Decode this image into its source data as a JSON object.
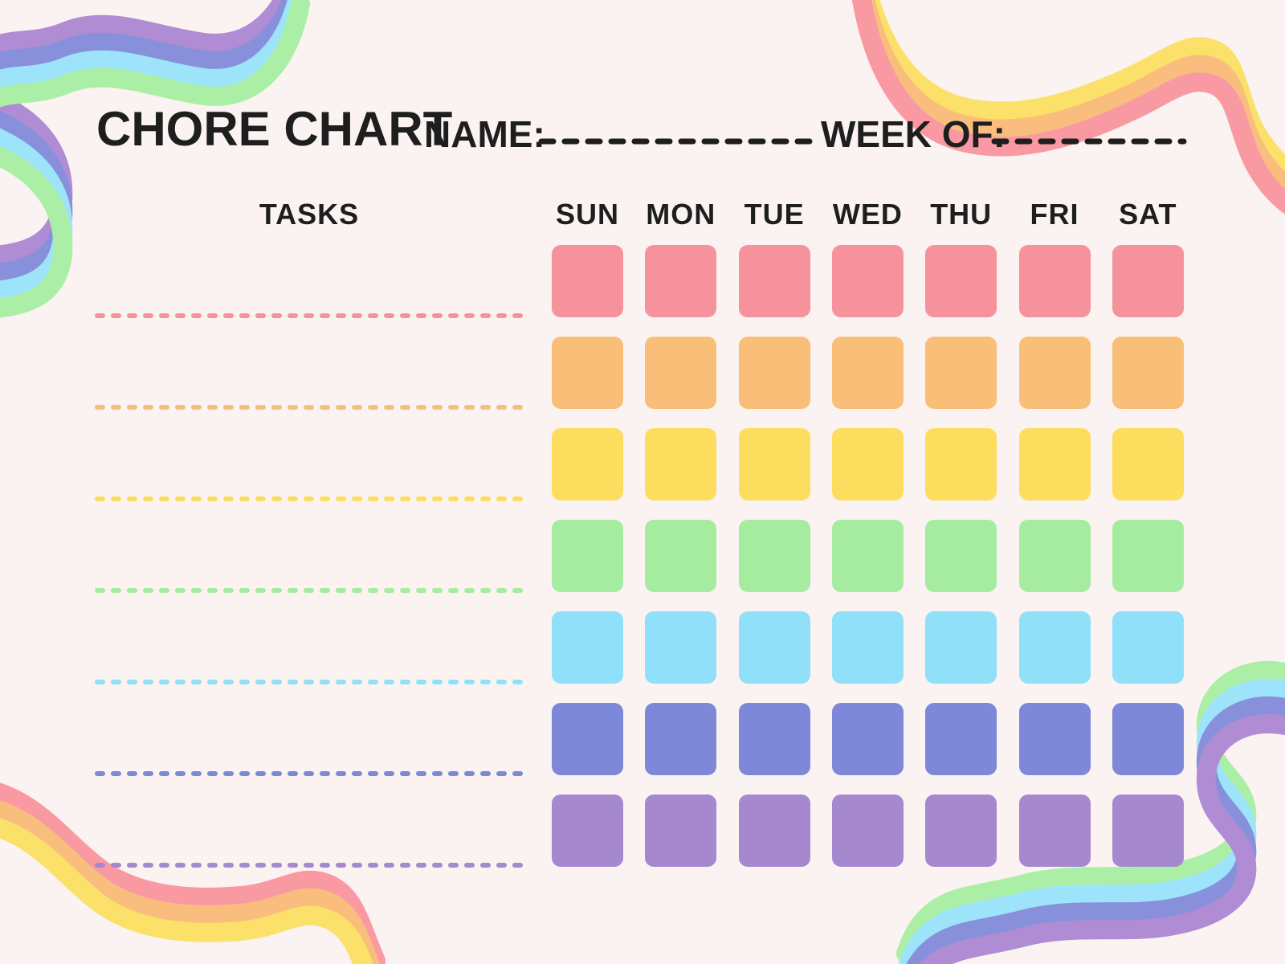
{
  "page": {
    "background": "#FAF3F1",
    "ink": "#1E1E1E"
  },
  "header": {
    "title": "CHORE CHART",
    "name_label": "NAME:",
    "name_value": "",
    "week_of_label": "WEEK OF:",
    "week_of_value": ""
  },
  "table": {
    "tasks_label": "TASKS",
    "days": [
      "SUN",
      "MON",
      "TUE",
      "WED",
      "THU",
      "FRI",
      "SAT"
    ],
    "rows": [
      {
        "name": "row-1",
        "color": "#F6929B",
        "task_text": ""
      },
      {
        "name": "row-2",
        "color": "#F9BE77",
        "task_text": ""
      },
      {
        "name": "row-3",
        "color": "#FCDD5D",
        "task_text": ""
      },
      {
        "name": "row-4",
        "color": "#A5ECA0",
        "task_text": ""
      },
      {
        "name": "row-5",
        "color": "#8FE0F8",
        "task_text": ""
      },
      {
        "name": "row-6",
        "color": "#7D89D8",
        "task_text": ""
      },
      {
        "name": "row-7",
        "color": "#A688CF",
        "task_text": ""
      }
    ]
  },
  "decorations": {
    "top_left": {
      "stripes": [
        "#AF8CD3",
        "#8890DC",
        "#9DE3FA",
        "#ABEFA6"
      ]
    },
    "top_right": {
      "stripes": [
        "#FBE169",
        "#F9BE7D",
        "#F99AA3"
      ]
    },
    "bottom_left": {
      "stripes": [
        "#F99AA3",
        "#F9BE7D",
        "#FBE169"
      ]
    },
    "bottom_right": {
      "stripes": [
        "#ABEFA6",
        "#9DE3FA",
        "#8890DC",
        "#AF8CD3"
      ]
    }
  }
}
